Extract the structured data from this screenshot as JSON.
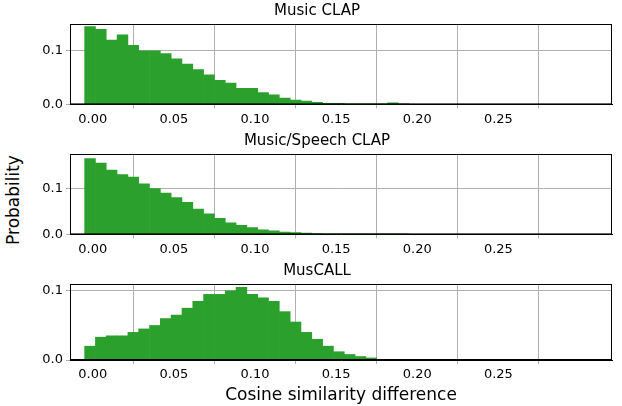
{
  "chart_data": [
    {
      "type": "histogram",
      "title": "Music CLAP",
      "color": "#2ca02c",
      "grid": true,
      "bins": [
        -0.005,
        0.0017,
        0.0083,
        0.015,
        0.0217,
        0.0283,
        0.035,
        0.0417,
        0.0483,
        0.055,
        0.0617,
        0.0683,
        0.075,
        0.0817,
        0.0883,
        0.095,
        0.1017,
        0.1083,
        0.115,
        0.1217,
        0.1283,
        0.135,
        0.1417,
        0.1483,
        0.155,
        0.1617,
        0.1683,
        0.175,
        0.1817,
        0.1883,
        0.195
      ],
      "values": [
        0.145,
        0.14,
        0.12,
        0.13,
        0.11,
        0.1,
        0.1,
        0.095,
        0.085,
        0.075,
        0.065,
        0.055,
        0.045,
        0.04,
        0.03,
        0.03,
        0.022,
        0.018,
        0.012,
        0.008,
        0.006,
        0.004,
        0.002,
        0.002,
        0.001,
        0.001,
        0.001,
        0.001,
        0.003,
        0.001
      ],
      "xlim": [
        -0.014,
        0.32
      ],
      "xticks": [
        {
          "value": 0,
          "label": "0.00"
        },
        0.05,
        {
          "value": 0.1,
          "label": "0.10"
        },
        0.15,
        {
          "value": 0.2,
          "label": "0.20"
        },
        0.25
      ],
      "ylim": [
        0,
        0.15
      ],
      "yticks": [
        {
          "value": 0,
          "label": "0.0"
        },
        0.1
      ]
    },
    {
      "type": "histogram",
      "title": "Music/Speech CLAP",
      "color": "#2ca02c",
      "grid": true,
      "y_label": "Probability",
      "bins": [
        -0.005,
        0.0017,
        0.0083,
        0.015,
        0.0217,
        0.0283,
        0.035,
        0.0417,
        0.0483,
        0.055,
        0.0617,
        0.0683,
        0.075,
        0.0817,
        0.0883,
        0.095,
        0.1017,
        0.1083,
        0.115,
        0.1217,
        0.1283,
        0.135,
        0.1417,
        0.1483,
        0.155,
        0.1617,
        0.1683,
        0.175,
        0.1817,
        0.1883,
        0.195
      ],
      "values": [
        0.165,
        0.155,
        0.14,
        0.13,
        0.125,
        0.11,
        0.1,
        0.09,
        0.08,
        0.07,
        0.055,
        0.045,
        0.035,
        0.025,
        0.02,
        0.015,
        0.01,
        0.008,
        0.005,
        0.004,
        0.003,
        0.002,
        0.001,
        0.001,
        0.001,
        0.001,
        0.001,
        0.001,
        0.001,
        0.001
      ],
      "xlim": [
        -0.014,
        0.32
      ],
      "xticks": [
        {
          "value": 0,
          "label": "0.00"
        },
        0.05,
        {
          "value": 0.1,
          "label": "0.10"
        },
        0.15,
        {
          "value": 0.2,
          "label": "0.20"
        },
        0.25
      ],
      "ylim": [
        0,
        0.175
      ],
      "yticks": [
        {
          "value": 0,
          "label": "0.0"
        },
        0.1
      ]
    },
    {
      "type": "histogram",
      "title": "MusCALL",
      "color": "#2ca02c",
      "grid": true,
      "x_label": "Cosine similarity difference",
      "bins": [
        -0.005,
        0.0017,
        0.0083,
        0.015,
        0.0217,
        0.0283,
        0.035,
        0.0417,
        0.0483,
        0.055,
        0.0617,
        0.0683,
        0.075,
        0.0817,
        0.0883,
        0.095,
        0.1017,
        0.1083,
        0.115,
        0.1217,
        0.1283,
        0.135,
        0.1417,
        0.1483,
        0.155,
        0.1617,
        0.1683,
        0.175,
        0.1817,
        0.1883,
        0.195
      ],
      "values": [
        0.02,
        0.033,
        0.035,
        0.035,
        0.04,
        0.045,
        0.05,
        0.06,
        0.065,
        0.075,
        0.085,
        0.095,
        0.095,
        0.1,
        0.105,
        0.095,
        0.09,
        0.085,
        0.07,
        0.055,
        0.04,
        0.03,
        0.02,
        0.012,
        0.008,
        0.005,
        0.003,
        0.001,
        0.001,
        0.001
      ],
      "xlim": [
        -0.014,
        0.32
      ],
      "xticks": [
        {
          "value": 0,
          "label": "0.00"
        },
        0.05,
        {
          "value": 0.1,
          "label": "0.10"
        },
        0.15,
        {
          "value": 0.2,
          "label": "0.20"
        },
        0.25
      ],
      "ylim": [
        0,
        0.11
      ],
      "yticks": [
        {
          "value": 0,
          "label": "0.0"
        },
        0.1
      ]
    }
  ]
}
